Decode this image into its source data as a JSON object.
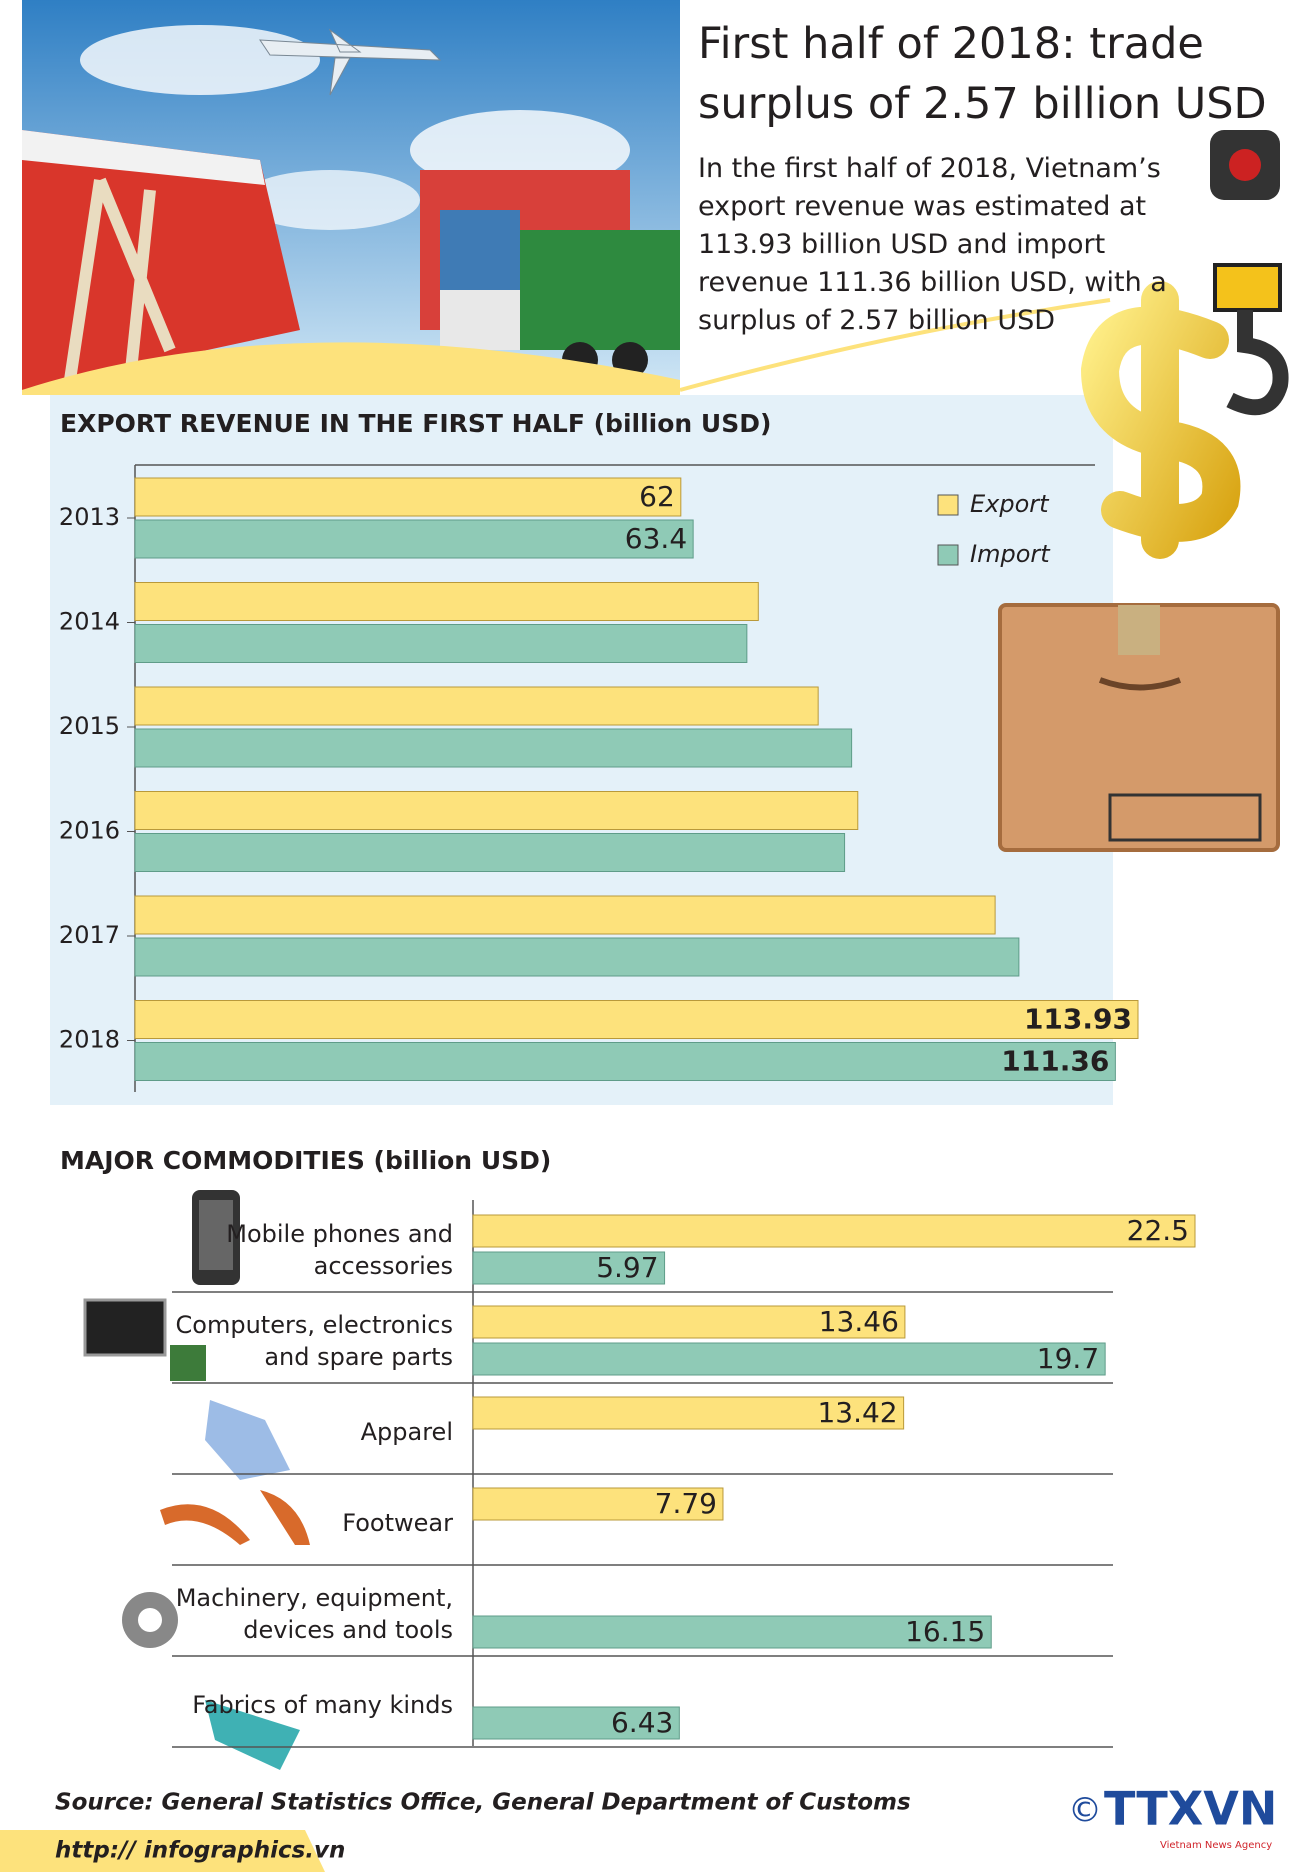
{
  "header": {
    "title": "First half of 2018: trade surplus of 2.57 billion USD",
    "description": "In the first half of 2018, Vietnam’s export revenue was estimated at 113.93 billion USD and import revenue 111.36 billion USD, with a surplus of 2.57 billion USD"
  },
  "chart_data": [
    {
      "type": "hbar",
      "title": "EXPORT REVENUE IN THE FIRST HALF (billion USD)",
      "categories": [
        "2013",
        "2014",
        "2015",
        "2016",
        "2017",
        "2018"
      ],
      "series": [
        {
          "name": "Export",
          "color": "#fde27c",
          "values": [
            62,
            70.8,
            77.6,
            82.1,
            97.7,
            113.93
          ],
          "value_labels": [
            "62",
            null,
            null,
            null,
            null,
            "113.93"
          ]
        },
        {
          "name": "Import",
          "color": "#8fcab6",
          "values": [
            63.4,
            69.5,
            81.4,
            80.6,
            100.4,
            111.36
          ],
          "value_labels": [
            "63.4",
            null,
            null,
            null,
            null,
            "111.36"
          ]
        }
      ],
      "legend": "upper right"
    },
    {
      "type": "hbar",
      "title": "MAJOR COMMODITIES (billion USD)",
      "categories": [
        "Mobile phones and accessories",
        "Computers, electronics and spare parts",
        "Apparel",
        "Footwear",
        "Machinery, equipment, devices and tools",
        "Fabrics of many kinds"
      ],
      "series": [
        {
          "name": "Export",
          "color": "#fde27c",
          "values": [
            22.5,
            13.46,
            13.42,
            7.79,
            null,
            null
          ]
        },
        {
          "name": "Import",
          "color": "#8fcab6",
          "values": [
            5.97,
            19.7,
            null,
            null,
            16.15,
            6.43
          ]
        }
      ],
      "legend": false
    }
  ],
  "footer": {
    "source": "Source: General Statistics Office, General Department of Customs",
    "url": "http:// infographics.vn",
    "copyright": "©",
    "logo": "TTXVN",
    "agency": "Vietnam News Agency"
  }
}
